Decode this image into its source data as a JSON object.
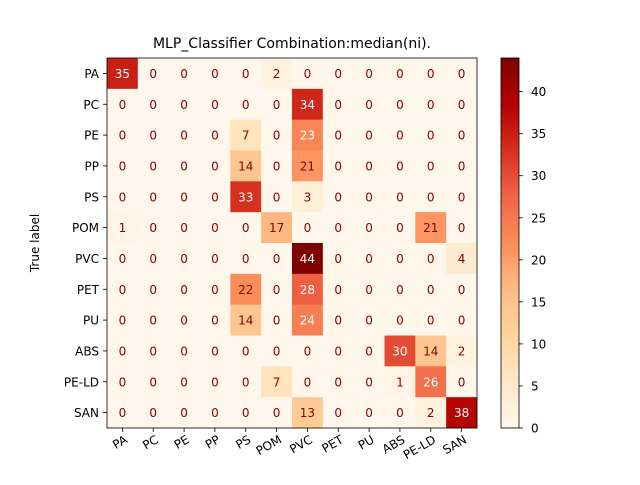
{
  "chart_data": {
    "type": "heatmap",
    "title": "MLP_Classifier Combination:median(ni).",
    "xlabel": "",
    "ylabel": "True label",
    "colormap": "OrRd",
    "row_labels": [
      "PA",
      "PC",
      "PE",
      "PP",
      "PS",
      "POM",
      "PVC",
      "PET",
      "PU",
      "ABS",
      "PE-LD",
      "SAN"
    ],
    "col_labels": [
      "PA",
      "PC",
      "PE",
      "PP",
      "PS",
      "POM",
      "PVC",
      "PET",
      "PU",
      "ABS",
      "PE-LD",
      "SAN"
    ],
    "values": [
      [
        35,
        0,
        0,
        0,
        0,
        2,
        0,
        0,
        0,
        0,
        0,
        0
      ],
      [
        0,
        0,
        0,
        0,
        0,
        0,
        34,
        0,
        0,
        0,
        0,
        0
      ],
      [
        0,
        0,
        0,
        0,
        7,
        0,
        23,
        0,
        0,
        0,
        0,
        0
      ],
      [
        0,
        0,
        0,
        0,
        14,
        0,
        21,
        0,
        0,
        0,
        0,
        0
      ],
      [
        0,
        0,
        0,
        0,
        33,
        0,
        3,
        0,
        0,
        0,
        0,
        0
      ],
      [
        1,
        0,
        0,
        0,
        0,
        17,
        0,
        0,
        0,
        0,
        21,
        0
      ],
      [
        0,
        0,
        0,
        0,
        0,
        0,
        44,
        0,
        0,
        0,
        0,
        4
      ],
      [
        0,
        0,
        0,
        0,
        22,
        0,
        28,
        0,
        0,
        0,
        0,
        0
      ],
      [
        0,
        0,
        0,
        0,
        14,
        0,
        24,
        0,
        0,
        0,
        0,
        0
      ],
      [
        0,
        0,
        0,
        0,
        0,
        0,
        0,
        0,
        0,
        30,
        14,
        2
      ],
      [
        0,
        0,
        0,
        0,
        0,
        7,
        0,
        0,
        0,
        1,
        26,
        0
      ],
      [
        0,
        0,
        0,
        0,
        0,
        0,
        13,
        0,
        0,
        0,
        2,
        38
      ]
    ],
    "colorbar": {
      "min": 0,
      "max": 44,
      "ticks": [
        0,
        5,
        10,
        15,
        20,
        25,
        30,
        35,
        40
      ]
    },
    "grid": false
  }
}
